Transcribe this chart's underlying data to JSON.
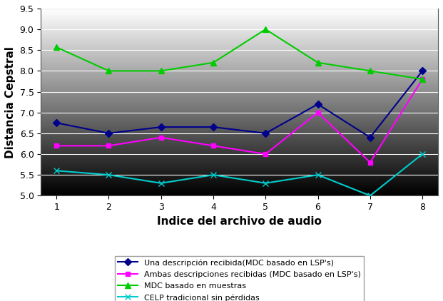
{
  "x": [
    1,
    2,
    3,
    4,
    5,
    6,
    7,
    8
  ],
  "series": {
    "una_descripcion": {
      "values": [
        6.75,
        6.5,
        6.65,
        6.65,
        6.5,
        7.2,
        6.4,
        8.0
      ],
      "color": "#00008B",
      "marker": "D",
      "label": "Una descripción recibida(MDC basado en LSP's)",
      "markersize": 5
    },
    "ambas_descripciones": {
      "values": [
        6.2,
        6.2,
        6.4,
        6.2,
        6.0,
        7.0,
        5.8,
        7.8
      ],
      "color": "#FF00FF",
      "marker": "s",
      "label": "Ambas descripciones recibidas (MDC basado en LSP's)",
      "markersize": 5
    },
    "mdc_muestras": {
      "values": [
        8.57,
        8.0,
        8.0,
        8.2,
        9.0,
        8.2,
        8.0,
        7.8
      ],
      "color": "#00CC00",
      "marker": "^",
      "label": "MDC basado en muestras",
      "markersize": 6
    },
    "celp_tradicional": {
      "values": [
        5.6,
        5.5,
        5.3,
        5.5,
        5.3,
        5.5,
        5.0,
        6.0
      ],
      "color": "#00CCCC",
      "marker": "x",
      "label": "CELP tradicional sin pérdidas",
      "markersize": 6
    }
  },
  "xlabel": "Indice del archivo de audio",
  "ylabel": "Distancia Cepstral",
  "ylim": [
    5.0,
    9.5
  ],
  "xlim": [
    0.7,
    8.3
  ],
  "yticks": [
    5.0,
    5.5,
    6.0,
    6.5,
    7.0,
    7.5,
    8.0,
    8.5,
    9.0,
    9.5
  ],
  "xticks": [
    1,
    2,
    3,
    4,
    5,
    6,
    7,
    8
  ],
  "grid_color": "#FFFFFF",
  "xlabel_fontsize": 11,
  "ylabel_fontsize": 11,
  "tick_fontsize": 9,
  "legend_fontsize": 8,
  "linewidth": 1.5
}
